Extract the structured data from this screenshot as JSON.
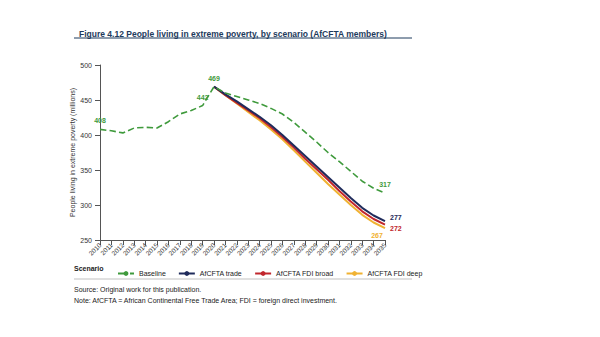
{
  "chart_data": {
    "type": "line",
    "title": "Figure 4.12 People living in extreme poverty, by scenario (AfCFTA members)",
    "y_label": "People living in extreme poverty (millions)",
    "categories": [
      "2010",
      "2011",
      "2012",
      "2013",
      "2014",
      "2015",
      "2016",
      "2017",
      "2018",
      "2019",
      "2020",
      "2021",
      "2022",
      "2023",
      "2024",
      "2025",
      "2026",
      "2027",
      "2028",
      "2029",
      "2030",
      "2031",
      "2032",
      "2033",
      "2034",
      "2035"
    ],
    "ylim": [
      250,
      500
    ],
    "yticks": [
      250,
      300,
      350,
      400,
      450,
      500
    ],
    "grid": false,
    "legend": "bottom",
    "legend_title": "Scenario",
    "data_labels": true,
    "source": "Source: Original work for this publication.",
    "note": "Note: AfCFTA = African Continental Free Trade Area; FDI = foreign direct investment.",
    "series": [
      {
        "name": "Baseline",
        "color": "#3f9a3c",
        "line_style": "dashed",
        "values": [
          408,
          406,
          403,
          410,
          411,
          410,
          419,
          430,
          435,
          442,
          469,
          460,
          455,
          450,
          445,
          438,
          430,
          418,
          404,
          390,
          375,
          362,
          348,
          334,
          324,
          317
        ],
        "value_labels": [
          "408",
          null,
          null,
          null,
          null,
          null,
          null,
          null,
          null,
          "442",
          "469",
          null,
          null,
          null,
          null,
          null,
          null,
          null,
          null,
          null,
          null,
          null,
          null,
          null,
          null,
          "317"
        ]
      },
      {
        "name": "AfCFTA trade",
        "color": "#1f2b5b",
        "line_style": "solid",
        "values": [
          null,
          null,
          null,
          null,
          null,
          null,
          null,
          null,
          null,
          null,
          469,
          458,
          448,
          437,
          426,
          414,
          400,
          385,
          370,
          355,
          340,
          325,
          310,
          296,
          285,
          277
        ],
        "value_labels": [
          null,
          null,
          null,
          null,
          null,
          null,
          null,
          null,
          null,
          null,
          null,
          null,
          null,
          null,
          null,
          null,
          null,
          null,
          null,
          null,
          null,
          null,
          null,
          null,
          null,
          "277"
        ]
      },
      {
        "name": "AfCFTA FDI broad",
        "color": "#c1272d",
        "line_style": "solid",
        "values": [
          null,
          null,
          null,
          null,
          null,
          null,
          null,
          null,
          null,
          null,
          469,
          457,
          446,
          435,
          424,
          411,
          397,
          382,
          366,
          351,
          336,
          320,
          305,
          291,
          280,
          272
        ],
        "value_labels": [
          null,
          null,
          null,
          null,
          null,
          null,
          null,
          null,
          null,
          null,
          null,
          null,
          null,
          null,
          null,
          null,
          null,
          null,
          null,
          null,
          null,
          null,
          null,
          null,
          null,
          "272"
        ]
      },
      {
        "name": "AfCFTA FDI deep",
        "color": "#f0b232",
        "line_style": "solid",
        "values": [
          null,
          null,
          null,
          null,
          null,
          null,
          null,
          null,
          null,
          null,
          469,
          457,
          445,
          433,
          421,
          408,
          394,
          378,
          362,
          346,
          330,
          315,
          300,
          286,
          275,
          267
        ],
        "value_labels": [
          null,
          null,
          null,
          null,
          null,
          null,
          null,
          null,
          null,
          null,
          null,
          null,
          null,
          null,
          null,
          null,
          null,
          null,
          null,
          null,
          null,
          null,
          null,
          null,
          null,
          "267"
        ]
      }
    ]
  }
}
